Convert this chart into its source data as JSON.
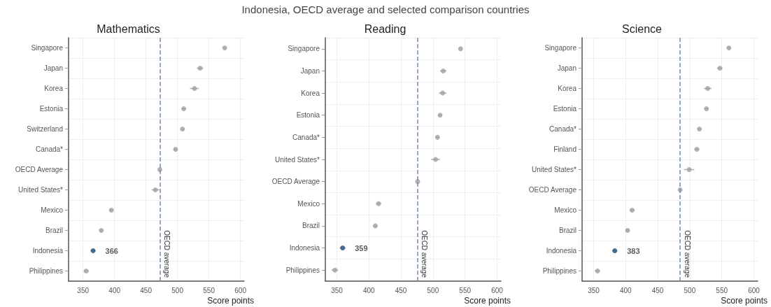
{
  "chart_data": [
    {
      "type": "scatter",
      "title": "Mathematics",
      "xlabel": "Score points",
      "annotations": [
        "Indonesia, OECD average and selected comparison countries"
      ],
      "orientation": "horizontal",
      "categories": [
        "Singapore",
        "Japan",
        "Korea",
        "Estonia",
        "Switzerland",
        "Canada*",
        "OECD Average",
        "United States*",
        "Mexico",
        "Brazil",
        "Indonesia",
        "Philippines"
      ],
      "values": [
        575,
        536,
        527,
        510,
        508,
        497,
        472,
        465,
        395,
        379,
        366,
        355
      ],
      "errors": [
        2,
        5,
        7,
        3,
        3,
        3,
        1,
        6,
        3,
        3,
        4,
        4
      ],
      "colors": [
        "#a0a0a0",
        "#a0a0a0",
        "#a0a0a0",
        "#a0a0a0",
        "#a0a0a0",
        "#a0a0a0",
        "#a0a0a0",
        "#a0a0a0",
        "#a0a0a0",
        "#a0a0a0",
        "#1f4e79",
        "#a0a0a0"
      ],
      "value_labels": [
        null,
        null,
        null,
        null,
        null,
        null,
        null,
        null,
        null,
        null,
        "366",
        null
      ],
      "xlim": [
        327,
        606
      ],
      "xticks": [
        350,
        400,
        450,
        500,
        550,
        600
      ],
      "ref_lines": [
        {
          "axis": "x",
          "value": 472,
          "label": "OECD average",
          "color": "#6e8fb5",
          "line_style": "dashed"
        }
      ],
      "grid": true,
      "marker": "circle"
    },
    {
      "type": "scatter",
      "title": "Reading",
      "xlabel": "Score points",
      "orientation": "horizontal",
      "categories": [
        "Singapore",
        "Japan",
        "Korea",
        "Estonia",
        "Canada*",
        "United States*",
        "OECD Average",
        "Mexico",
        "Brazil",
        "Indonesia",
        "Philippines"
      ],
      "values": [
        543,
        516,
        515,
        511,
        507,
        504,
        476,
        415,
        410,
        359,
        347
      ],
      "errors": [
        2,
        5,
        6,
        3,
        3,
        7,
        1,
        4,
        3,
        5,
        5
      ],
      "colors": [
        "#a0a0a0",
        "#a0a0a0",
        "#a0a0a0",
        "#a0a0a0",
        "#a0a0a0",
        "#a0a0a0",
        "#a0a0a0",
        "#a0a0a0",
        "#a0a0a0",
        "#1f4e79",
        "#a0a0a0"
      ],
      "value_labels": [
        null,
        null,
        null,
        null,
        null,
        null,
        null,
        null,
        null,
        "359",
        null
      ],
      "xlim": [
        332,
        606
      ],
      "xticks": [
        350,
        400,
        450,
        500,
        550,
        600
      ],
      "ref_lines": [
        {
          "axis": "x",
          "value": 476,
          "label": "OECD average",
          "color": "#6e8fb5",
          "line_style": "dashed"
        }
      ],
      "grid": true,
      "marker": "circle"
    },
    {
      "type": "scatter",
      "title": "Science",
      "xlabel": "Score points",
      "orientation": "horizontal",
      "categories": [
        "Singapore",
        "Japan",
        "Korea",
        "Estonia",
        "Canada*",
        "Finland",
        "United States*",
        "OECD Average",
        "Mexico",
        "Brazil",
        "Indonesia",
        "Philippines"
      ],
      "values": [
        561,
        547,
        528,
        526,
        515,
        511,
        499,
        485,
        410,
        403,
        383,
        356
      ],
      "errors": [
        2,
        4,
        6,
        3,
        3,
        4,
        8,
        1,
        4,
        3,
        4,
        4
      ],
      "colors": [
        "#a0a0a0",
        "#a0a0a0",
        "#a0a0a0",
        "#a0a0a0",
        "#a0a0a0",
        "#a0a0a0",
        "#a0a0a0",
        "#a0a0a0",
        "#a0a0a0",
        "#a0a0a0",
        "#1f4e79",
        "#a0a0a0"
      ],
      "value_labels": [
        null,
        null,
        null,
        null,
        null,
        null,
        null,
        null,
        null,
        null,
        "383",
        null
      ],
      "xlim": [
        332,
        606
      ],
      "xticks": [
        350,
        400,
        450,
        500,
        550,
        600
      ],
      "ref_lines": [
        {
          "axis": "x",
          "value": 485,
          "label": "OECD average",
          "color": "#6e8fb5",
          "line_style": "dashed"
        }
      ],
      "grid": true,
      "marker": "circle"
    }
  ]
}
